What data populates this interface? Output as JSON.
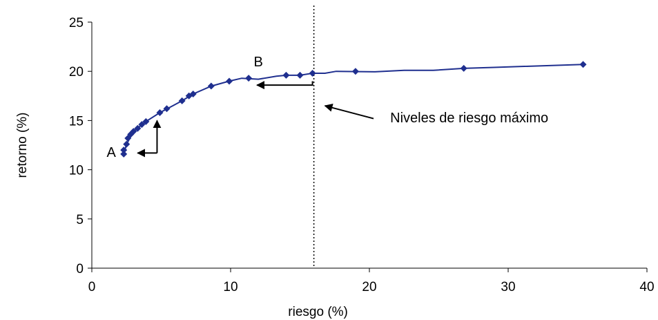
{
  "chart_data": {
    "type": "line",
    "xlabel": "riesgo (%)",
    "ylabel": "retorno (%)",
    "xlim": [
      0,
      40
    ],
    "ylim": [
      0,
      25
    ],
    "x_ticks": [
      0,
      10,
      20,
      30,
      40
    ],
    "y_ticks": [
      0,
      5,
      10,
      15,
      20,
      25
    ],
    "grid": false,
    "series_color": "#1f2f8f",
    "marker": "diamond",
    "series": [
      {
        "points": [
          {
            "x": 2.3,
            "y": 11.6
          },
          {
            "x": 2.3,
            "y": 12.0
          },
          {
            "x": 2.5,
            "y": 12.6
          },
          {
            "x": 2.6,
            "y": 13.2
          },
          {
            "x": 2.8,
            "y": 13.6
          },
          {
            "x": 3.0,
            "y": 13.9
          },
          {
            "x": 3.3,
            "y": 14.2
          },
          {
            "x": 3.6,
            "y": 14.6
          },
          {
            "x": 3.9,
            "y": 14.9
          },
          {
            "x": 4.9,
            "y": 15.8
          },
          {
            "x": 5.4,
            "y": 16.2
          },
          {
            "x": 6.5,
            "y": 17.0
          },
          {
            "x": 7.0,
            "y": 17.5
          },
          {
            "x": 7.3,
            "y": 17.7
          },
          {
            "x": 8.6,
            "y": 18.5
          },
          {
            "x": 9.9,
            "y": 19.0
          },
          {
            "x": 11.3,
            "y": 19.3
          },
          {
            "x": 14.0,
            "y": 19.6
          },
          {
            "x": 15.0,
            "y": 19.6
          },
          {
            "x": 15.9,
            "y": 19.8
          },
          {
            "x": 19.0,
            "y": 20.0
          },
          {
            "x": 26.8,
            "y": 20.3
          },
          {
            "x": 35.4,
            "y": 20.7
          }
        ],
        "line_path": [
          {
            "x": 2.3,
            "y": 11.6
          },
          {
            "x": 2.5,
            "y": 12.6
          },
          {
            "x": 3.0,
            "y": 13.9
          },
          {
            "x": 3.9,
            "y": 14.9
          },
          {
            "x": 4.9,
            "y": 15.8
          },
          {
            "x": 6.5,
            "y": 17.0
          },
          {
            "x": 7.3,
            "y": 17.7
          },
          {
            "x": 8.6,
            "y": 18.5
          },
          {
            "x": 9.9,
            "y": 19.0
          },
          {
            "x": 10.8,
            "y": 19.3
          },
          {
            "x": 12.0,
            "y": 19.2
          },
          {
            "x": 13.3,
            "y": 19.5
          },
          {
            "x": 14.0,
            "y": 19.6
          },
          {
            "x": 15.0,
            "y": 19.6
          },
          {
            "x": 15.9,
            "y": 19.8
          },
          {
            "x": 16.8,
            "y": 19.8
          },
          {
            "x": 17.6,
            "y": 20.0
          },
          {
            "x": 20.4,
            "y": 19.95
          },
          {
            "x": 22.5,
            "y": 20.1
          },
          {
            "x": 24.6,
            "y": 20.1
          },
          {
            "x": 26.8,
            "y": 20.3
          },
          {
            "x": 29.0,
            "y": 20.4
          },
          {
            "x": 35.4,
            "y": 20.7
          }
        ]
      }
    ],
    "max_risk_level_x": 16,
    "annotations": [
      {
        "text": "A",
        "x": 1.4,
        "y": 11.8
      },
      {
        "text": "B",
        "x": 12.0,
        "y": 21.0
      },
      {
        "text": "Niveles de riesgo máximo",
        "x": 21.5,
        "y": 15.3
      }
    ],
    "arrows": [
      {
        "from": {
          "x": 4.7,
          "y": 11.7
        },
        "corner": {
          "x": 4.7,
          "y": 11.7
        },
        "to": {
          "x": 3.3,
          "y": 11.7
        }
      },
      {
        "from": {
          "x": 4.7,
          "y": 11.7
        },
        "corner": {
          "x": 4.7,
          "y": 11.7
        },
        "to": {
          "x": 4.7,
          "y": 15.0
        }
      },
      {
        "from": {
          "x": 15.9,
          "y": 19.0
        },
        "corner": {
          "x": 15.9,
          "y": 18.6
        },
        "to": {
          "x": 11.9,
          "y": 18.6
        }
      },
      {
        "from": {
          "x": 20.3,
          "y": 15.2
        },
        "corner": {
          "x": 20.3,
          "y": 15.2
        },
        "to": {
          "x": 16.8,
          "y": 16.5
        }
      }
    ]
  }
}
